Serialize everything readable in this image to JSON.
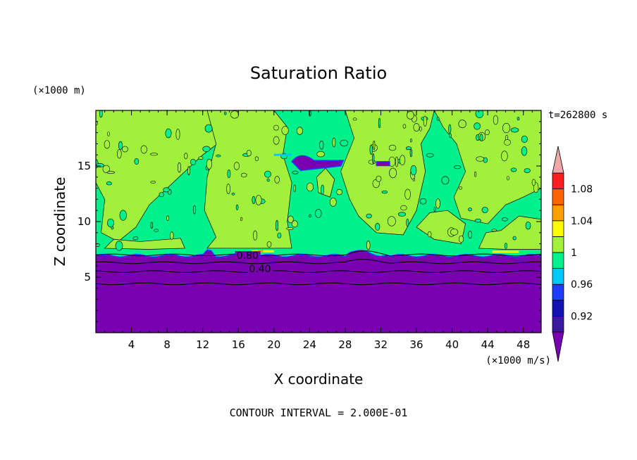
{
  "chart_data": {
    "type": "heatmap",
    "title": "Saturation Ratio",
    "xlabel": "X coordinate",
    "ylabel": "Z coordinate",
    "x_unit": "(×1000 m/s)",
    "y_unit": "(×1000 m)",
    "time_label": "t=262800 s",
    "contour_interval_label": "CONTOUR INTERVAL = 2.000E-01",
    "xlim": [
      0,
      50
    ],
    "ylim": [
      0,
      20
    ],
    "x_ticks": [
      4,
      8,
      12,
      16,
      20,
      24,
      28,
      32,
      36,
      40,
      44,
      48
    ],
    "y_ticks": [
      5,
      10,
      15
    ],
    "contour_labels": [
      {
        "text": "0.80",
        "x": 15.8,
        "z": 6.7
      },
      {
        "text": "0.40",
        "x": 17.2,
        "z": 5.5
      }
    ],
    "colorbar": {
      "levels": [
        0.9,
        0.92,
        0.94,
        0.96,
        0.98,
        1.0,
        1.02,
        1.04,
        1.06,
        1.08,
        1.1
      ],
      "labels": [
        "0.92",
        "0.96",
        "1",
        "1.04",
        "1.08"
      ],
      "colors": [
        "#3c1aa0",
        "#1414b4",
        "#1e3cff",
        "#00c8ff",
        "#00f08c",
        "#a0f03c",
        "#ffff00",
        "#ffa000",
        "#ff6400",
        "#ff1e1e"
      ],
      "low_color": "#7800b0",
      "high_color": "#f0a8a8"
    },
    "regions": {
      "dry_layer_top_z": 7.0,
      "contour_lines_z": [
        7.0,
        6.3,
        5.5,
        4.4
      ],
      "upper_band_value": 1.01,
      "mid_band_value": 0.99
    }
  }
}
